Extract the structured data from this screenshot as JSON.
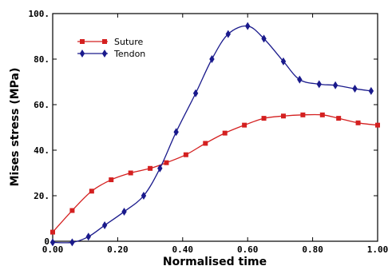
{
  "chart_data": {
    "type": "line",
    "title": "",
    "xlabel": "Normalised time",
    "ylabel": "Mises stress (MPa)",
    "xlim": [
      0,
      1.0
    ],
    "ylim": [
      0,
      100
    ],
    "x_ticks": [
      "0.00",
      "0.20",
      "0.40",
      "0.60",
      "0.80",
      "1.00"
    ],
    "y_ticks": [
      "0",
      "20.",
      "40.",
      "60.",
      "80.",
      "100."
    ],
    "grid": false,
    "legend_position": "top-left",
    "series": [
      {
        "name": "Suture",
        "color": "#d42020",
        "marker": "square",
        "x": [
          0.0,
          0.06,
          0.12,
          0.18,
          0.24,
          0.3,
          0.35,
          0.41,
          0.47,
          0.53,
          0.59,
          0.65,
          0.71,
          0.77,
          0.83,
          0.88,
          0.94,
          1.0
        ],
        "y": [
          4,
          13.5,
          22,
          27,
          30,
          32,
          34.5,
          38,
          43,
          47.5,
          51,
          54,
          55,
          55.5,
          55.5,
          54,
          52,
          51
        ]
      },
      {
        "name": "Tendon",
        "color": "#1a1a8c",
        "marker": "diamond",
        "x": [
          0.0,
          0.06,
          0.11,
          0.16,
          0.22,
          0.28,
          0.33,
          0.38,
          0.44,
          0.49,
          0.54,
          0.6,
          0.65,
          0.71,
          0.76,
          0.82,
          0.87,
          0.93,
          0.98
        ],
        "y": [
          -0.5,
          -0.5,
          2,
          7,
          13,
          20,
          32,
          48,
          65,
          80,
          91,
          94.5,
          89,
          79,
          71,
          69,
          68.5,
          67,
          66
        ]
      }
    ]
  }
}
